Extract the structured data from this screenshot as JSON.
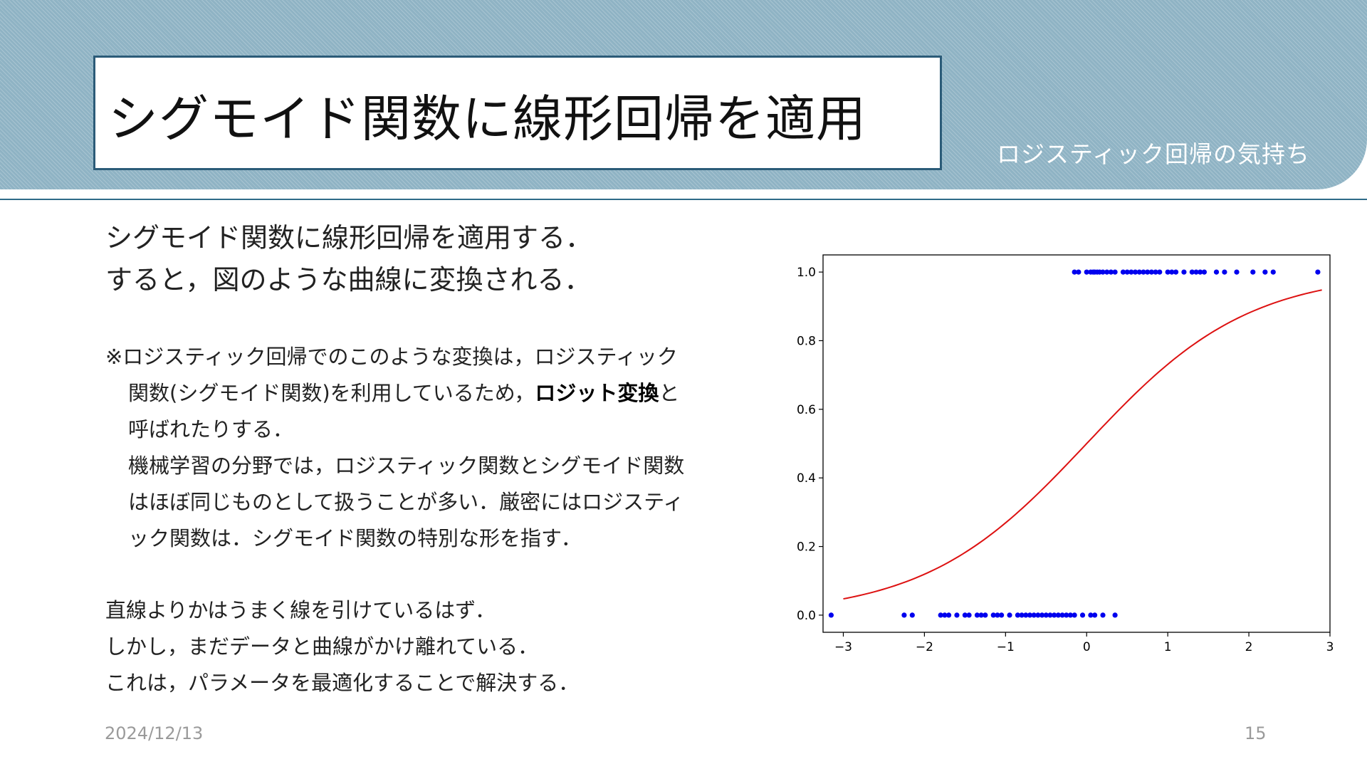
{
  "slide": {
    "title": "シグモイド関数に線形回帰を適用",
    "section": "ロジスティック回帰の気持ち",
    "date": "2024/12/13",
    "page": "15"
  },
  "intro": [
    "シグモイド関数に線形回帰を適用する．",
    "すると，図のような曲線に変換される．"
  ],
  "note": {
    "line1": "※ロジスティック回帰でのこのような変換は，ロジスティック",
    "line2_pre": "関数(シグモイド関数)を利用しているため，",
    "line2_bold": "ロジット変換",
    "line2_post": "と",
    "line3": "呼ばれたりする．",
    "line4": "機械学習の分野では，ロジスティック関数とシグモイド関数",
    "line5": "はほぼ同じものとして扱うことが多い．厳密にはロジスティ",
    "line6": "ック関数は．シグモイド関数の特別な形を指す．"
  },
  "conclusion": [
    "直線よりかはうまく線を引けているはず．",
    "しかし，まだデータと曲線がかけ離れている．",
    "これは，パラメータを最適化することで解決する．"
  ],
  "chart_data": {
    "type": "scatter",
    "xlim": [
      -3.25,
      3.0
    ],
    "ylim": [
      -0.05,
      1.05
    ],
    "xticks": [
      -3,
      -2,
      -1,
      0,
      1,
      2,
      3
    ],
    "xtick_labels": [
      "−3",
      "−2",
      "−1",
      "0",
      "1",
      "2",
      "3"
    ],
    "yticks": [
      0.0,
      0.2,
      0.4,
      0.6,
      0.8,
      1.0
    ],
    "ytick_labels": [
      "0.0",
      "0.2",
      "0.4",
      "0.6",
      "0.8",
      "1.0"
    ],
    "grid": false,
    "scatter_color": "#0000ee",
    "curve_color": "#dd1111",
    "points_y1_x": [
      -0.15,
      -0.1,
      0.0,
      0.05,
      0.08,
      0.1,
      0.13,
      0.16,
      0.2,
      0.25,
      0.3,
      0.35,
      0.45,
      0.5,
      0.55,
      0.6,
      0.65,
      0.7,
      0.75,
      0.8,
      0.85,
      0.9,
      1.0,
      1.05,
      1.1,
      1.2,
      1.3,
      1.35,
      1.4,
      1.45,
      1.6,
      1.7,
      1.85,
      2.05,
      2.2,
      2.3,
      2.85
    ],
    "points_y0_x": [
      -3.15,
      -2.25,
      -2.15,
      -1.8,
      -1.75,
      -1.7,
      -1.6,
      -1.5,
      -1.45,
      -1.35,
      -1.3,
      -1.25,
      -1.15,
      -1.1,
      -1.05,
      -0.95,
      -0.85,
      -0.8,
      -0.75,
      -0.7,
      -0.65,
      -0.6,
      -0.55,
      -0.5,
      -0.45,
      -0.4,
      -0.35,
      -0.3,
      -0.25,
      -0.2,
      -0.15,
      -0.05,
      0.05,
      0.1,
      0.2,
      0.35
    ],
    "curve": {
      "function": "logistic",
      "k": 1.0,
      "x0": 0.0,
      "x_start": -3.0,
      "x_end": 2.9
    }
  }
}
